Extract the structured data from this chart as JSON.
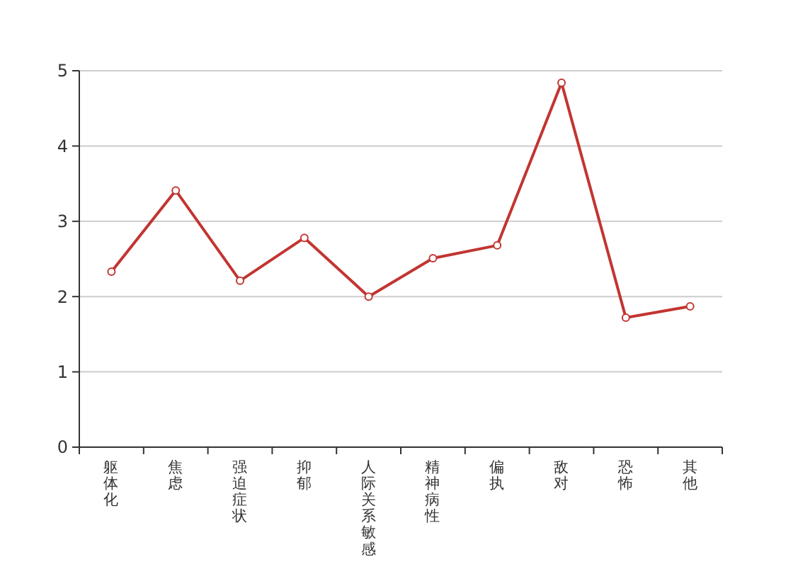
{
  "chart_data": {
    "type": "line",
    "categories": [
      "躯体化",
      "焦虑",
      "强迫症状",
      "抑郁",
      "人际关系敏感",
      "精神病性",
      "偏执",
      "敌对",
      "恐怖",
      "其他"
    ],
    "series": [
      {
        "color": "#c23531",
        "values": [
          2.33,
          3.41,
          2.21,
          2.78,
          2.0,
          2.51,
          2.68,
          4.84,
          1.72,
          1.87
        ]
      }
    ],
    "ylim": [
      0,
      5
    ],
    "yticks": [
      0,
      1,
      2,
      3,
      4,
      5
    ],
    "grid": "y",
    "marker": "circle",
    "line_style": "solid"
  }
}
